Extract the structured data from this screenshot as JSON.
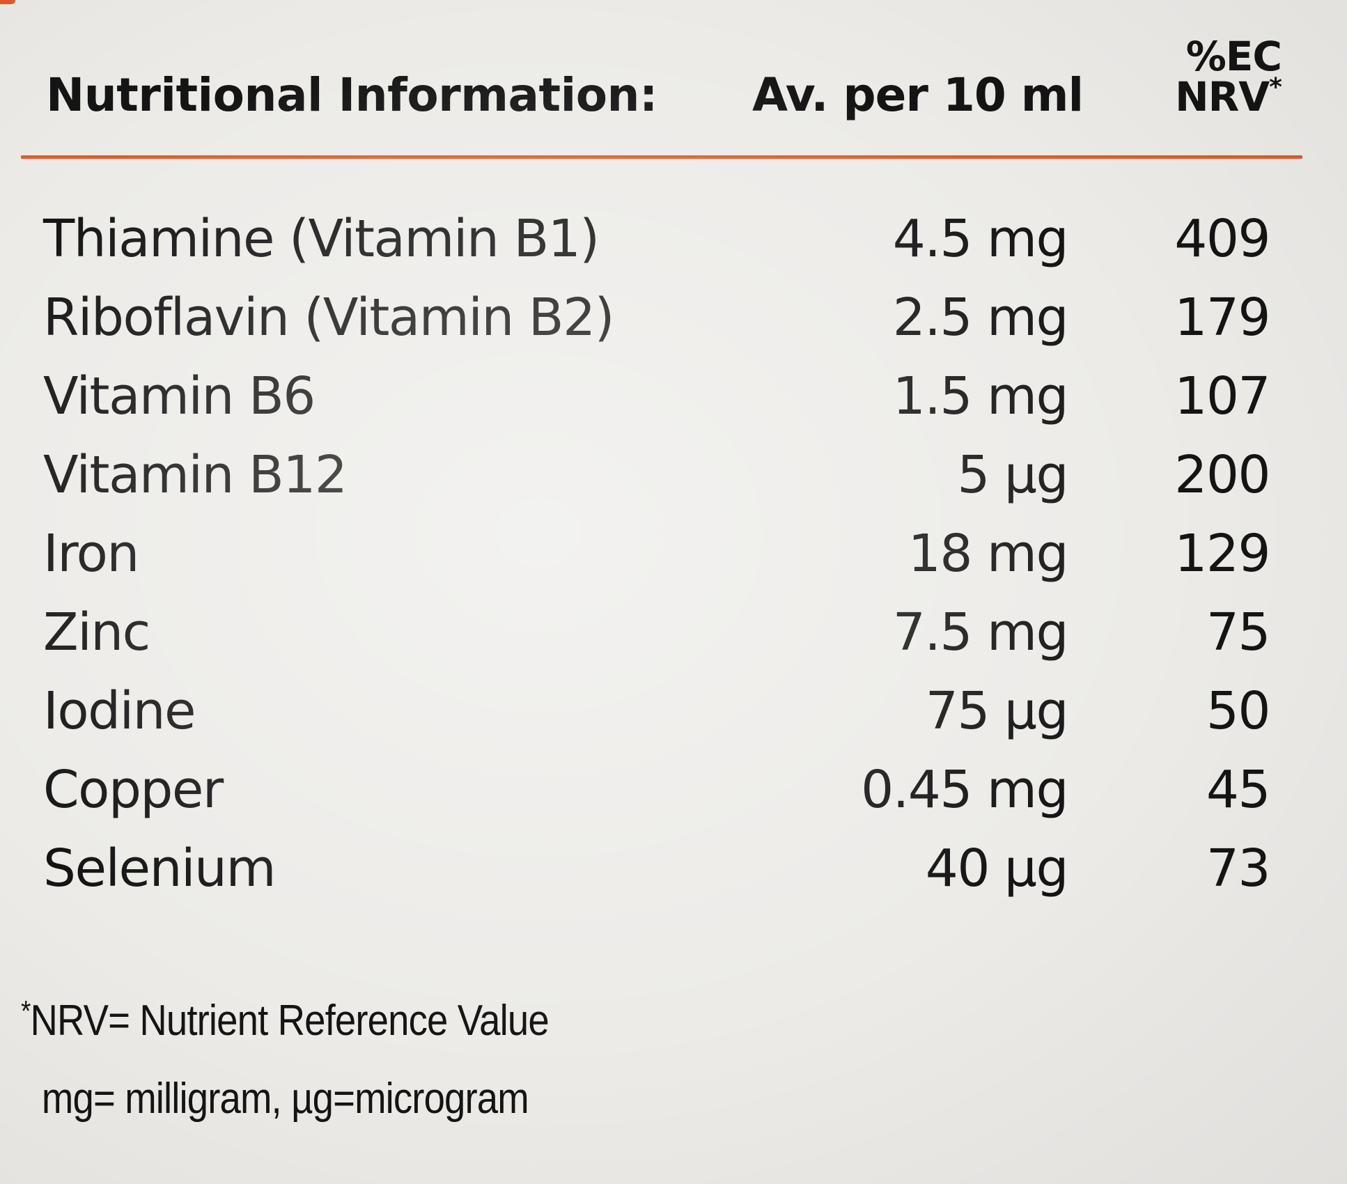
{
  "header": {
    "title": "Nutritional Information:",
    "amount_label": "Av. per 10 ml",
    "nrv_label_top": "%EC",
    "nrv_label_bottom": "NRV",
    "nrv_marker": "*"
  },
  "rows": [
    {
      "name": "Thiamine  (Vitamin B1)",
      "amount": "4.5  mg",
      "nrv": "409"
    },
    {
      "name": "Riboflavin (Vitamin B2)",
      "amount": "2.5  mg",
      "nrv": "179"
    },
    {
      "name": "Vitamin B6",
      "amount": "1.5 mg",
      "nrv": "107"
    },
    {
      "name": "Vitamin B12",
      "amount": "5 µg",
      "nrv": "200"
    },
    {
      "name": "Iron",
      "amount": "18 mg",
      "nrv": "129"
    },
    {
      "name": "Zinc",
      "amount": "7.5 mg",
      "nrv": "75"
    },
    {
      "name": "Iodine",
      "amount": "75 µg",
      "nrv": "50"
    },
    {
      "name": "Copper",
      "amount": "0.45 mg",
      "nrv": "45"
    },
    {
      "name": "Selenium",
      "amount": "40 µg",
      "nrv": "73"
    }
  ],
  "footnotes": {
    "marker": "*",
    "line1": "NRV= Nutrient Reference Value",
    "line2": "mg= milligram, µg=microgram"
  },
  "colors": {
    "background": "#ecebe8",
    "accent_rule": "#e65a28",
    "text": "#141414"
  }
}
